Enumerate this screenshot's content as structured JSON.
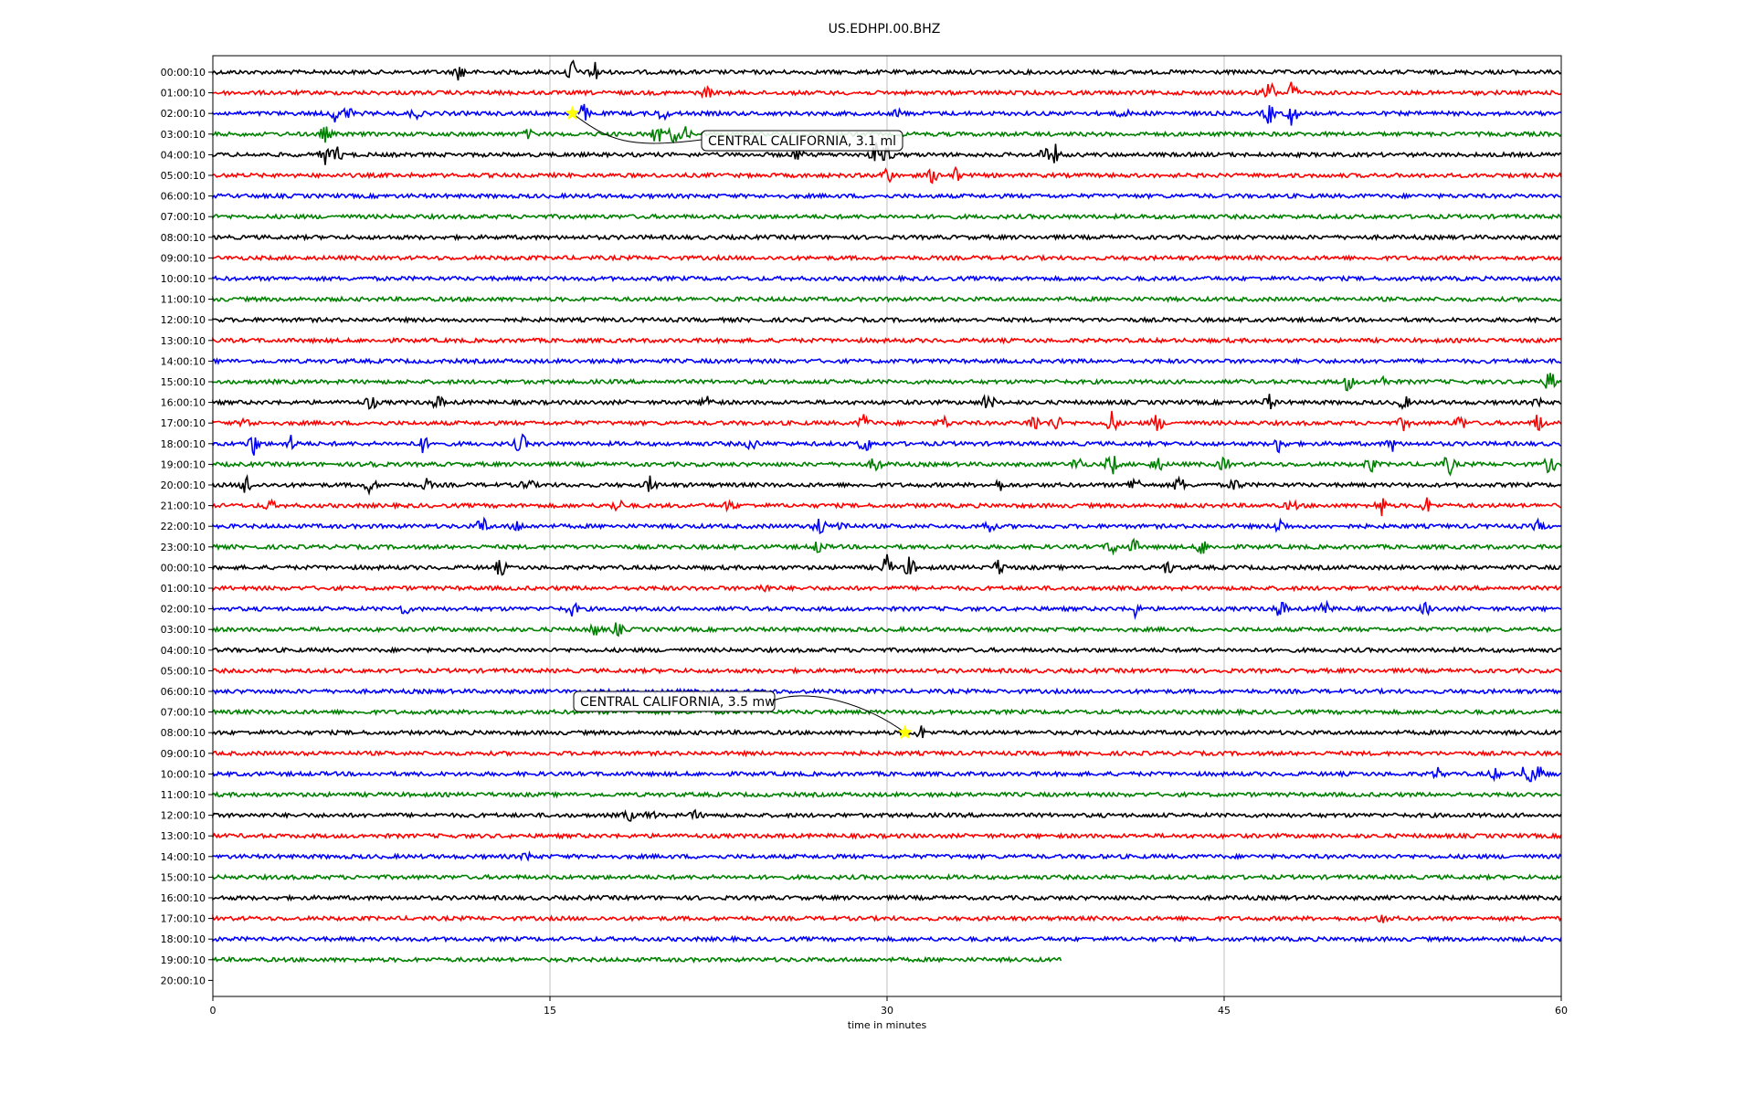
{
  "chart_data": {
    "type": "line",
    "title": "US.EDHPI.00.BHZ",
    "xlabel": "time in minutes",
    "ylabel": "",
    "xlim": [
      0,
      60
    ],
    "xticks": [
      0,
      15,
      30,
      45,
      60
    ],
    "grid": "vertical lines at x ticks",
    "legend": "none",
    "color_cycle": [
      "#000000",
      "#ff0000",
      "#0000ff",
      "#008000"
    ],
    "row_labels": [
      "00:00:10",
      "01:00:10",
      "02:00:10",
      "03:00:10",
      "04:00:10",
      "05:00:10",
      "06:00:10",
      "07:00:10",
      "08:00:10",
      "09:00:10",
      "10:00:10",
      "11:00:10",
      "12:00:10",
      "13:00:10",
      "14:00:10",
      "15:00:10",
      "16:00:10",
      "17:00:10",
      "18:00:10",
      "19:00:10",
      "20:00:10",
      "21:00:10",
      "22:00:10",
      "23:00:10",
      "00:00:10",
      "01:00:10",
      "02:00:10",
      "03:00:10",
      "04:00:10",
      "05:00:10",
      "06:00:10",
      "07:00:10",
      "08:00:10",
      "09:00:10",
      "10:00:10",
      "11:00:10",
      "12:00:10",
      "13:00:10",
      "14:00:10",
      "15:00:10",
      "16:00:10",
      "17:00:10",
      "18:00:10",
      "19:00:10",
      "20:00:10"
    ],
    "last_trace_end_minute": 37.8,
    "row_activity": [
      [
        [
          11,
          0.7
        ],
        [
          16,
          1.0
        ],
        [
          17,
          0.9
        ]
      ],
      [
        [
          22,
          0.4
        ],
        [
          47,
          1.0
        ],
        [
          48,
          0.9
        ]
      ],
      [
        [
          5.5,
          0.7
        ],
        [
          6,
          0.5
        ],
        [
          9,
          0.4
        ],
        [
          16.5,
          0.7
        ],
        [
          20,
          0.5
        ],
        [
          30.5,
          0.3
        ],
        [
          40.5,
          0.3
        ],
        [
          47,
          0.8
        ],
        [
          48,
          0.9
        ]
      ],
      [
        [
          5,
          0.6
        ],
        [
          14,
          0.3
        ],
        [
          19.8,
          0.9
        ],
        [
          20.5,
          0.6
        ],
        [
          21,
          0.5
        ]
      ],
      [
        [
          5,
          0.7
        ],
        [
          5.5,
          0.6
        ],
        [
          26,
          0.4
        ],
        [
          29.5,
          0.9
        ],
        [
          30,
          0.6
        ],
        [
          37,
          0.5
        ],
        [
          37.5,
          0.7
        ]
      ],
      [
        [
          30,
          0.7
        ],
        [
          32,
          0.5
        ],
        [
          33,
          0.6
        ]
      ],
      [],
      [],
      [],
      [],
      [],
      [],
      [],
      [],
      [],
      [
        [
          50.5,
          0.7
        ],
        [
          52,
          0.5
        ],
        [
          59.5,
          0.8
        ]
      ],
      [
        [
          7,
          0.6
        ],
        [
          10,
          0.5
        ],
        [
          22,
          0.6
        ],
        [
          34.5,
          0.8
        ],
        [
          47,
          0.6
        ],
        [
          53,
          0.5
        ],
        [
          59,
          0.3
        ]
      ],
      [
        [
          1.5,
          0.4
        ],
        [
          29,
          0.7
        ],
        [
          32.5,
          0.5
        ],
        [
          36.5,
          0.8
        ],
        [
          37.5,
          0.6
        ],
        [
          40,
          0.9
        ],
        [
          42,
          0.7
        ],
        [
          53,
          0.5
        ],
        [
          55.5,
          0.6
        ],
        [
          59,
          0.8
        ]
      ],
      [
        [
          1.8,
          0.9
        ],
        [
          3.5,
          0.6
        ],
        [
          9.3,
          0.7
        ],
        [
          13.7,
          0.8
        ],
        [
          24,
          0.5
        ],
        [
          29,
          0.7
        ],
        [
          47.5,
          0.8
        ],
        [
          52.5,
          0.5
        ]
      ],
      [
        [
          7,
          0.4
        ],
        [
          29.5,
          0.6
        ],
        [
          38.5,
          0.6
        ],
        [
          40,
          0.9
        ],
        [
          42,
          0.6
        ],
        [
          45,
          0.5
        ],
        [
          51.5,
          0.6
        ],
        [
          55,
          0.8
        ],
        [
          59.5,
          0.7
        ]
      ],
      [
        [
          1.5,
          0.8
        ],
        [
          7,
          0.6
        ],
        [
          9.5,
          0.4
        ],
        [
          14,
          0.5
        ],
        [
          19.5,
          0.7
        ],
        [
          35,
          0.4
        ],
        [
          41,
          0.7
        ],
        [
          43,
          0.6
        ],
        [
          45.5,
          0.5
        ]
      ],
      [
        [
          2.5,
          0.4
        ],
        [
          18,
          0.5
        ],
        [
          23,
          0.4
        ],
        [
          48,
          0.4
        ],
        [
          52,
          0.8
        ],
        [
          54,
          0.6
        ]
      ],
      [
        [
          12,
          0.7
        ],
        [
          13.5,
          0.5
        ],
        [
          27,
          0.8
        ],
        [
          28,
          0.5
        ],
        [
          34.5,
          0.5
        ],
        [
          47.5,
          0.6
        ],
        [
          59,
          0.4
        ]
      ],
      [
        [
          27,
          0.6
        ],
        [
          40,
          0.6
        ],
        [
          41,
          0.5
        ],
        [
          44,
          0.7
        ]
      ],
      [
        [
          12.8,
          0.6
        ],
        [
          30,
          0.9
        ],
        [
          31,
          0.8
        ],
        [
          35,
          0.6
        ],
        [
          42.5,
          0.5
        ]
      ],
      [
        [
          24.5,
          0.3
        ]
      ],
      [
        [
          8.5,
          0.4
        ],
        [
          16,
          0.5
        ],
        [
          41,
          0.6
        ],
        [
          47.5,
          0.7
        ],
        [
          49.5,
          0.6
        ],
        [
          54,
          0.5
        ]
      ],
      [
        [
          17,
          0.5
        ],
        [
          18,
          0.5
        ]
      ],
      [],
      [],
      [],
      [],
      [
        [
          31.5,
          0.5
        ]
      ],
      [],
      [
        [
          54.5,
          0.4
        ],
        [
          57,
          0.4
        ],
        [
          58.5,
          1.0
        ],
        [
          59,
          0.7
        ]
      ],
      [],
      [
        [
          18.5,
          0.4
        ],
        [
          19.5,
          0.3
        ],
        [
          21.5,
          0.3
        ]
      ],
      [],
      [
        [
          14,
          0.3
        ]
      ],
      [],
      [],
      [
        [
          52,
          0.3
        ]
      ],
      [],
      [],
      []
    ],
    "annotations": [
      {
        "text": "CENTRAL CALIFORNIA, 3.1 ml",
        "row": 2,
        "minute": 16.0
      },
      {
        "text": "CENTRAL CALIFORNIA, 3.5 mw",
        "row": 32,
        "minute": 30.8
      }
    ]
  }
}
